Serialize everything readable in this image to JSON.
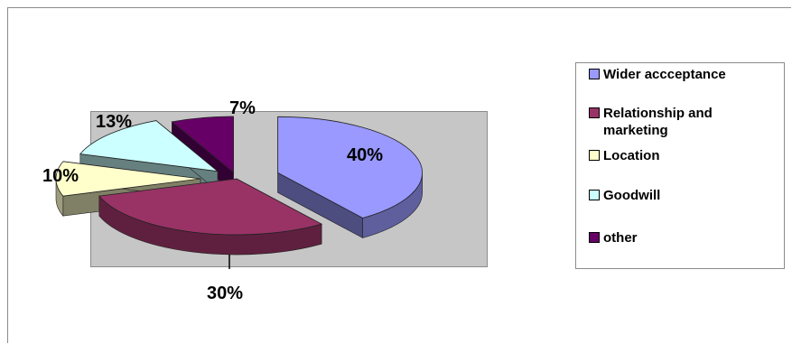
{
  "chart_data": {
    "type": "pie",
    "three_d": true,
    "exploded": true,
    "legend_position": "right",
    "slices": [
      {
        "label": "Wider accceptance",
        "value": 40,
        "value_label": "40%",
        "color": "#9999ff"
      },
      {
        "label": "Relationship and marketing",
        "value": 30,
        "value_label": "30%",
        "color": "#993366"
      },
      {
        "label": "Location",
        "value": 10,
        "value_label": "10%",
        "color": "#ffffcc"
      },
      {
        "label": "Goodwill",
        "value": 13,
        "value_label": "13%",
        "color": "#ccffff"
      },
      {
        "label": "other",
        "value": 7,
        "value_label": "7%",
        "color": "#660066"
      }
    ]
  }
}
